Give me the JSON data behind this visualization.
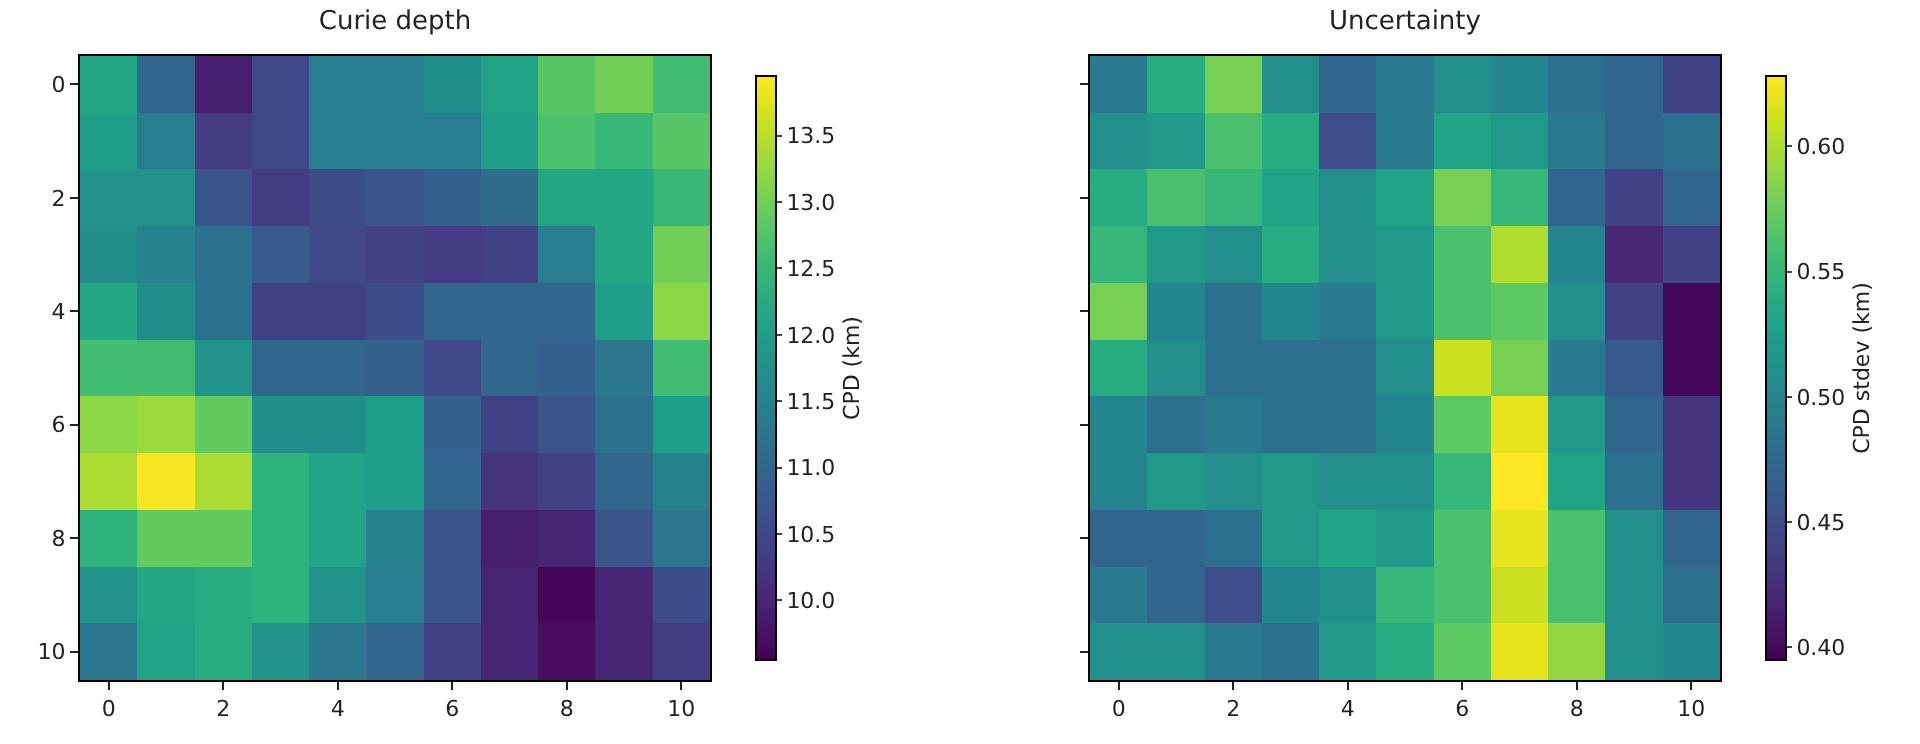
{
  "chart_data": [
    {
      "type": "heatmap",
      "title": "Curie depth",
      "clabel": "CPD (km)",
      "categories": [
        "0",
        null,
        "2",
        null,
        "4",
        null,
        "6",
        null,
        "8",
        null,
        "10"
      ],
      "y_categories": [
        "0",
        null,
        "2",
        null,
        "4",
        null,
        "6",
        null,
        "8",
        null,
        "10"
      ],
      "clim": [
        9.55,
        13.95
      ],
      "cticks": [
        {
          "value": 10,
          "label": "10.0"
        },
        {
          "value": 10.5,
          "label": "10.5"
        },
        {
          "value": 11,
          "label": "11.0"
        },
        {
          "value": 11.5,
          "label": "11.5"
        },
        {
          "value": 12,
          "label": "12.0"
        },
        {
          "value": 12.5,
          "label": "12.5"
        },
        {
          "value": 13,
          "label": "13.0"
        },
        {
          "value": 13.5,
          "label": "13.5"
        }
      ],
      "cells": [
        [
          12.2,
          11.0,
          9.9,
          10.5,
          11.4,
          11.4,
          11.7,
          12.1,
          12.8,
          13.0,
          12.6
        ],
        [
          12.0,
          11.4,
          10.3,
          10.5,
          11.4,
          11.4,
          11.4,
          12.0,
          12.7,
          12.5,
          12.8
        ],
        [
          11.8,
          11.8,
          10.7,
          10.3,
          10.6,
          10.7,
          10.9,
          11.1,
          12.2,
          12.2,
          12.5
        ],
        [
          11.7,
          11.5,
          11.2,
          10.8,
          10.5,
          10.4,
          10.3,
          10.4,
          11.4,
          12.2,
          13.0
        ],
        [
          12.2,
          11.7,
          11.2,
          10.4,
          10.4,
          10.6,
          11.0,
          11.0,
          11.0,
          12.0,
          13.2
        ],
        [
          12.6,
          12.6,
          11.8,
          11.0,
          11.0,
          10.9,
          10.5,
          11.0,
          10.9,
          11.3,
          12.6
        ],
        [
          13.2,
          13.3,
          12.9,
          11.7,
          11.7,
          12.0,
          10.9,
          10.4,
          10.7,
          11.2,
          12.0
        ],
        [
          13.4,
          13.9,
          13.4,
          12.4,
          12.1,
          12.0,
          11.0,
          10.2,
          10.4,
          11.0,
          11.5
        ],
        [
          12.4,
          12.9,
          12.9,
          12.4,
          12.1,
          11.5,
          10.7,
          9.9,
          10.0,
          10.7,
          11.3
        ],
        [
          11.8,
          12.2,
          12.3,
          12.4,
          11.8,
          11.4,
          10.7,
          10.0,
          9.6,
          10.0,
          10.6
        ],
        [
          11.3,
          12.1,
          12.3,
          11.8,
          11.3,
          11.0,
          10.4,
          10.0,
          9.7,
          10.0,
          10.3
        ]
      ]
    },
    {
      "type": "heatmap",
      "title": "Uncertainty",
      "clabel": "CPD stdev (km)",
      "tick_labels": "x",
      "categories": [
        "0",
        null,
        "2",
        null,
        "4",
        null,
        "6",
        null,
        "8",
        null,
        "10"
      ],
      "y_categories": [
        "0",
        null,
        "2",
        null,
        "4",
        null,
        "6",
        null,
        "8",
        null,
        "10"
      ],
      "clim": [
        0.395,
        0.628
      ],
      "cticks": [
        {
          "value": 0.4,
          "label": "0.40"
        },
        {
          "value": 0.45,
          "label": "0.45"
        },
        {
          "value": 0.5,
          "label": "0.50"
        },
        {
          "value": 0.55,
          "label": "0.55"
        },
        {
          "value": 0.6,
          "label": "0.60"
        }
      ],
      "cells": [
        [
          0.49,
          0.54,
          0.58,
          0.51,
          0.47,
          0.49,
          0.51,
          0.5,
          0.48,
          0.47,
          0.44
        ],
        [
          0.51,
          0.52,
          0.56,
          0.54,
          0.45,
          0.49,
          0.53,
          0.52,
          0.49,
          0.47,
          0.48
        ],
        [
          0.54,
          0.56,
          0.55,
          0.53,
          0.51,
          0.53,
          0.58,
          0.55,
          0.47,
          0.44,
          0.47
        ],
        [
          0.55,
          0.52,
          0.51,
          0.54,
          0.51,
          0.52,
          0.56,
          0.6,
          0.5,
          0.42,
          0.44
        ],
        [
          0.58,
          0.5,
          0.48,
          0.5,
          0.49,
          0.52,
          0.56,
          0.57,
          0.51,
          0.44,
          0.4
        ],
        [
          0.54,
          0.51,
          0.48,
          0.48,
          0.48,
          0.51,
          0.61,
          0.58,
          0.49,
          0.46,
          0.4
        ],
        [
          0.5,
          0.48,
          0.49,
          0.48,
          0.48,
          0.5,
          0.57,
          0.62,
          0.52,
          0.47,
          0.43
        ],
        [
          0.5,
          0.52,
          0.51,
          0.52,
          0.51,
          0.51,
          0.55,
          0.63,
          0.53,
          0.48,
          0.43
        ],
        [
          0.47,
          0.47,
          0.48,
          0.52,
          0.53,
          0.52,
          0.56,
          0.62,
          0.56,
          0.51,
          0.47
        ],
        [
          0.49,
          0.47,
          0.45,
          0.5,
          0.51,
          0.55,
          0.56,
          0.61,
          0.56,
          0.51,
          0.48
        ],
        [
          0.51,
          0.51,
          0.49,
          0.48,
          0.52,
          0.54,
          0.57,
          0.62,
          0.59,
          0.51,
          0.5
        ]
      ]
    }
  ]
}
